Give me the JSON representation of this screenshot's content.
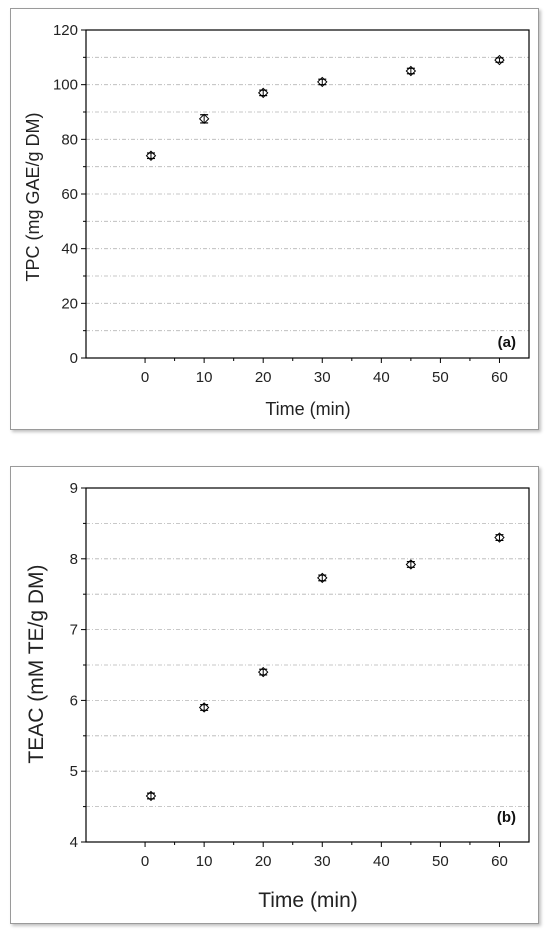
{
  "chart_data": [
    {
      "type": "scatter",
      "panel_label": "(a)",
      "xlabel": "Time (min)",
      "ylabel": "TPC (mg GAE/g DM)",
      "xlim": [
        -10,
        65
      ],
      "ylim": [
        0,
        120
      ],
      "xticks": [
        "0",
        "10",
        "20",
        "30",
        "40",
        "50",
        "60"
      ],
      "yticks": [
        "0",
        "20",
        "40",
        "60",
        "80",
        "100",
        "120"
      ],
      "grid": "horizontal dashed",
      "points": [
        {
          "x": 1,
          "y": 74,
          "err": 1.0
        },
        {
          "x": 10,
          "y": 87.5,
          "err": 1.5
        },
        {
          "x": 20,
          "y": 97,
          "err": 1.0
        },
        {
          "x": 30,
          "y": 101,
          "err": 1.0
        },
        {
          "x": 45,
          "y": 105,
          "err": 1.0
        },
        {
          "x": 60,
          "y": 109,
          "err": 0.8
        }
      ]
    },
    {
      "type": "scatter",
      "panel_label": "(b)",
      "xlabel": "Time (min)",
      "ylabel": "TEAC (mM TE/g DM)",
      "xlim": [
        -10,
        65
      ],
      "ylim": [
        4,
        9
      ],
      "xticks": [
        "0",
        "10",
        "20",
        "30",
        "40",
        "50",
        "60"
      ],
      "yticks": [
        "4",
        "5",
        "6",
        "7",
        "8",
        "9"
      ],
      "grid": "horizontal dashed",
      "points": [
        {
          "x": 1,
          "y": 4.65,
          "err": 0.04
        },
        {
          "x": 10,
          "y": 5.9,
          "err": 0.04
        },
        {
          "x": 20,
          "y": 6.4,
          "err": 0.04
        },
        {
          "x": 30,
          "y": 7.73,
          "err": 0.04
        },
        {
          "x": 45,
          "y": 7.92,
          "err": 0.04
        },
        {
          "x": 60,
          "y": 8.3,
          "err": 0.04
        }
      ]
    }
  ]
}
